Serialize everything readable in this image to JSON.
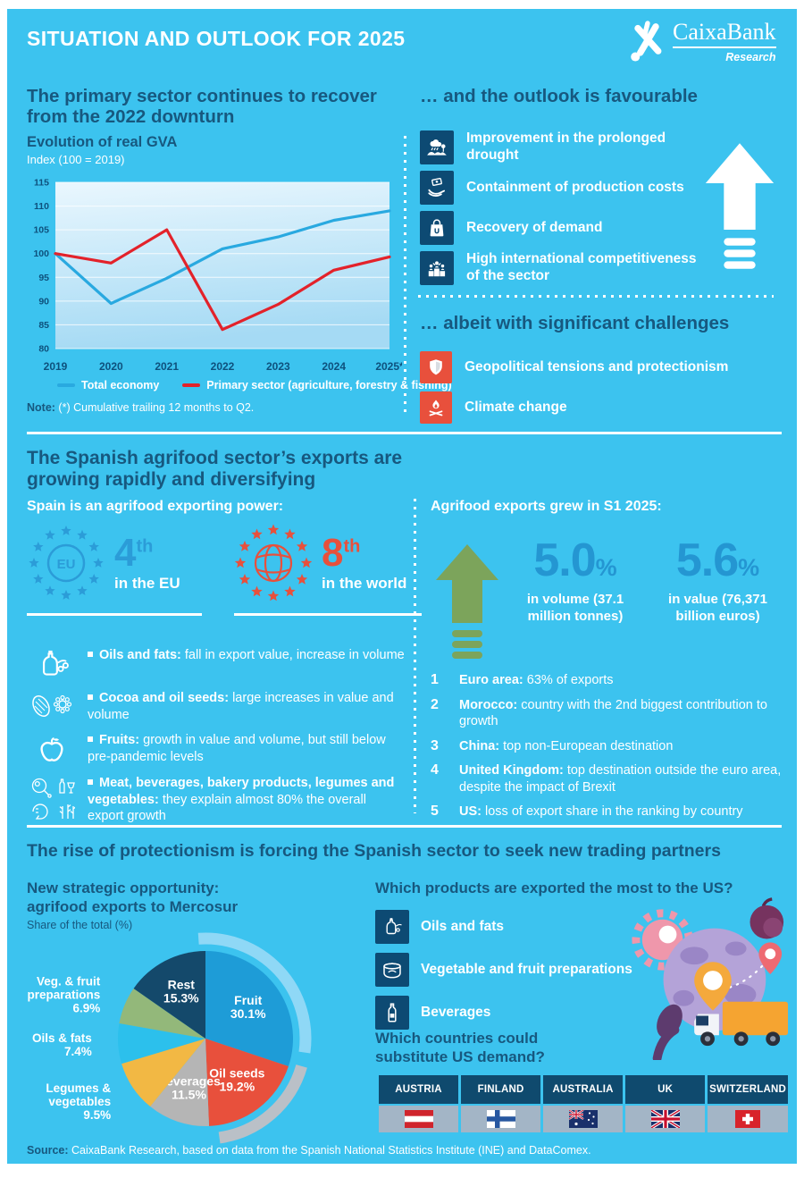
{
  "header": {
    "title": "SITUATION AND OUTLOOK FOR 2025",
    "brand": "CaixaBank",
    "brand_sub": "Research"
  },
  "section1": {
    "left_heading": "The primary sector continues to recover from the 2022 downturn",
    "chart_title": "Evolution of real GVA",
    "chart_subtitle": "Index (100 = 2019)",
    "note_label": "Note:",
    "note_text": " (*) Cumulative trailing 12 months to Q2.",
    "right_heading": "… and the outlook is favourable",
    "outlook_items": [
      {
        "label": "Improvement in the prolonged drought"
      },
      {
        "label": "Containment of production costs"
      },
      {
        "label": "Recovery of demand"
      },
      {
        "label": "High international competitiveness of the sector"
      }
    ],
    "challenges_heading": "… albeit with significant challenges",
    "challenge_items": [
      {
        "label": "Geopolitical tensions and protectionism"
      },
      {
        "label": "Climate change"
      }
    ]
  },
  "section2": {
    "heading": "The Spanish agrifood sector’s exports are growing rapidly and diversifying",
    "left_subheading": "Spain is an agrifood exporting power:",
    "eu_label": "EU",
    "rankings": [
      {
        "rank": "4",
        "suffix": "th",
        "scope": "in the EU"
      },
      {
        "rank": "8",
        "suffix": "th",
        "scope": "in the world"
      }
    ],
    "bullets": [
      {
        "bold": "Oils and fats:",
        "text": " fall in export value, increase in volume"
      },
      {
        "bold": "Cocoa and oil seeds:",
        "text": " large increases in value and volume"
      },
      {
        "bold": "Fruits:",
        "text": " growth in value and volume, but still below pre-pandemic levels"
      },
      {
        "bold": "Meat, beverages, bakery products, legumes and vegetables:",
        "text": " they explain almost 80% the overall export growth"
      }
    ],
    "right_subheading": "Agrifood exports grew in S1 2025:",
    "stats": [
      {
        "value": "5.0",
        "unit": "%",
        "caption": "in volume (37.1 million tonnes)"
      },
      {
        "value": "5.6",
        "unit": "%",
        "caption": "in value (76,371 billion euros)"
      }
    ],
    "destinations": [
      {
        "num": "1",
        "bold": "Euro area:",
        "text": " 63% of exports"
      },
      {
        "num": "2",
        "bold": "Morocco:",
        "text": " country with the 2nd biggest contribution to growth"
      },
      {
        "num": "3",
        "bold": "China:",
        "text": " top non-European destination"
      },
      {
        "num": "4",
        "bold": "United Kingdom:",
        "text": " top destination outside the euro area, despite the impact of Brexit"
      },
      {
        "num": "5",
        "bold": "US:",
        "text": " loss of export share in the ranking by country"
      }
    ]
  },
  "section3": {
    "heading": "The rise of protectionism is forcing the Spanish sector to seek new trading partners",
    "pie_title_line1": "New strategic opportunity:",
    "pie_title_line2": "agrifood exports to Mercosur",
    "pie_subtitle": "Share of the total (%)",
    "products_heading": "Which products are exported the most to the US?",
    "products": [
      {
        "label": "Oils and fats"
      },
      {
        "label": "Vegetable and fruit preparations"
      },
      {
        "label": "Beverages"
      }
    ],
    "countries_heading_line1": "Which countries could",
    "countries_heading_line2": "substitute US demand?",
    "countries": [
      "AUSTRIA",
      "FINLAND",
      "AUSTRALIA",
      "UK",
      "SWITZERLAND"
    ]
  },
  "footer": {
    "source_label": "Source:",
    "source_text": " CaixaBank Research, based on data from the Spanish National Statistics Institute (INE) and DataComex."
  },
  "colors": {
    "background": "#3cc3ef",
    "navy": "#17587f",
    "tile_navy": "#0d4a73",
    "red": "#e8503c",
    "stat_blue": "#2496d2",
    "green": "#7ca45b"
  },
  "chart_data": [
    {
      "type": "line",
      "title": "Evolution of real GVA",
      "subtitle": "Index (100 = 2019)",
      "x": [
        "2019",
        "2020",
        "2021",
        "2022",
        "2023",
        "2024",
        "2025*"
      ],
      "ylim": [
        80,
        115
      ],
      "yticks": [
        80,
        85,
        90,
        95,
        100,
        105,
        110,
        115
      ],
      "grid": true,
      "legend_position": "bottom",
      "series": [
        {
          "name": "Total economy",
          "color": "#29a9e0",
          "values": [
            100,
            89.5,
            94.8,
            101,
            103.5,
            107,
            109
          ]
        },
        {
          "name": "Primary sector (agriculture, forestry & fishing)",
          "color": "#e3222a",
          "values": [
            100,
            98,
            105,
            84,
            89.3,
            96.5,
            99.3
          ]
        }
      ],
      "note": "Note: (*) Cumulative trailing 12 months to Q2."
    },
    {
      "type": "pie",
      "title": "New strategic opportunity: agrifood exports to Mercosur",
      "subtitle": "Share of the total (%)",
      "slices": [
        {
          "label": "Fruit",
          "value": 30.1,
          "color": "#1e9cd7",
          "lines": [
            "Fruit",
            "30.1%"
          ]
        },
        {
          "label": "Oil seeds",
          "value": 19.2,
          "color": "#e8503c",
          "lines": [
            "Oil seeds",
            "19.2%"
          ]
        },
        {
          "label": "Beverages",
          "value": 11.5,
          "color": "#b5b5b5",
          "lines": [
            "Beverages",
            "11.5%"
          ]
        },
        {
          "label": "Legumes & vegetables",
          "value": 9.5,
          "color": "#f2b844",
          "lines": [
            "Legumes &",
            "vegetables",
            "9.5%"
          ]
        },
        {
          "label": "Oils & fats",
          "value": 7.4,
          "color": "#2cc0ec",
          "lines": [
            "Oils & fats",
            "7.4%"
          ]
        },
        {
          "label": "Veg. & fruit preparations",
          "value": 6.9,
          "color": "#93b87a",
          "lines": [
            "Veg. & fruit",
            "preparations",
            "6.9%"
          ]
        },
        {
          "label": "Rest",
          "value": 15.3,
          "color": "#14496b",
          "lines": [
            "Rest",
            "15.3%"
          ]
        }
      ]
    }
  ]
}
